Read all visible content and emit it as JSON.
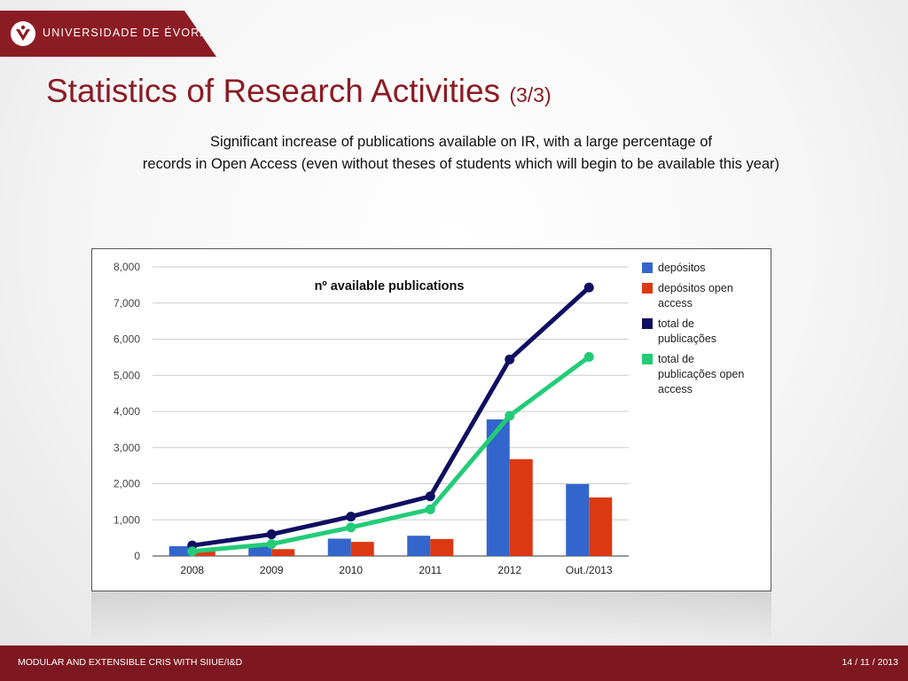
{
  "header": {
    "institution": "UNIVERSIDADE DE ÉVORA",
    "title": "Statistics of Research Activities",
    "title_suffix": "(3/3)"
  },
  "description": {
    "line1": "Significant increase of publications available on IR, with a large percentage of",
    "line2": "records in Open Access  (even without theses of students which will begin to be available this year)"
  },
  "chart_data": {
    "type": "bar",
    "title": "nº available publications",
    "categories": [
      "2008",
      "2009",
      "2010",
      "2011",
      "2012",
      "Out./2013"
    ],
    "y_ticks": [
      "0",
      "1,000",
      "2,000",
      "3,000",
      "4,000",
      "5,000",
      "6,000",
      "7,000",
      "8,000"
    ],
    "ylim": [
      0,
      8000
    ],
    "grid": true,
    "legend_position": "right",
    "series": [
      {
        "name": "depósitos",
        "kind": "bar",
        "color": "#3366cc",
        "values": [
          270,
          260,
          480,
          560,
          3780,
          1990
        ]
      },
      {
        "name": "depósitos open access",
        "kind": "bar",
        "color": "#dc3912",
        "values": [
          130,
          190,
          390,
          470,
          2680,
          1620
        ]
      },
      {
        "name": "total de publicações",
        "kind": "line",
        "color": "#0f0f62",
        "values": [
          290,
          600,
          1090,
          1650,
          5440,
          7430
        ]
      },
      {
        "name": "total de publicações open access",
        "kind": "line",
        "color": "#22cc77",
        "values": [
          130,
          330,
          790,
          1290,
          3880,
          5510
        ]
      }
    ],
    "legend": [
      {
        "lines": [
          "depósitos"
        ]
      },
      {
        "lines": [
          "depósitos open",
          "access"
        ]
      },
      {
        "lines": [
          "total de",
          "publicações"
        ]
      },
      {
        "lines": [
          "total de",
          "publicações open",
          "access"
        ]
      }
    ]
  },
  "footer": {
    "left": "MODULAR AND EXTENSIBLE CRIS WITH SIIUE/I&D",
    "right": "14 / 11 / 2013"
  }
}
